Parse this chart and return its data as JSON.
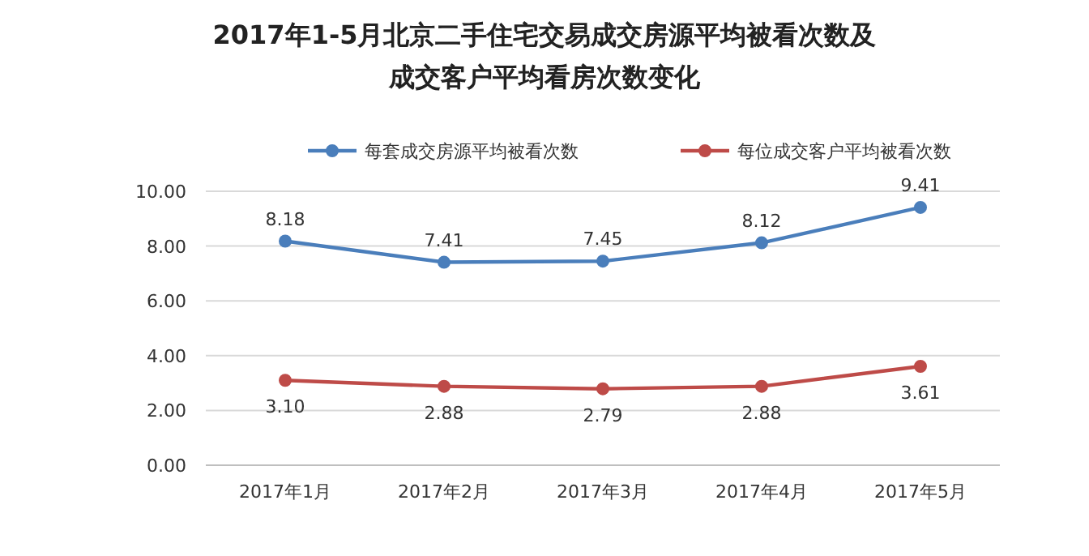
{
  "chart_data": {
    "type": "line",
    "title": "2017年1-5月北京二手住宅交易成交房源平均被看次数及成交客户平均看房次数变化",
    "categories": [
      "2017年1月",
      "2017年2月",
      "2017年3月",
      "2017年4月",
      "2017年5月"
    ],
    "series": [
      {
        "name": "每套成交房源平均被看次数",
        "color": "#4a7ebb",
        "values": [
          8.18,
          7.41,
          7.45,
          8.12,
          9.41
        ],
        "value_labels": [
          "8.18",
          "7.41",
          "7.45",
          "8.12",
          "9.41"
        ]
      },
      {
        "name": "每位成交客户平均被看次数",
        "color": "#be4b48",
        "values": [
          3.1,
          2.88,
          2.79,
          2.88,
          3.61
        ],
        "value_labels": [
          "3.10",
          "2.88",
          "2.79",
          "2.88",
          "3.61"
        ]
      }
    ],
    "ylim": [
      0,
      10
    ],
    "yticks": [
      {
        "value": 0,
        "label": "0.00"
      },
      {
        "value": 2,
        "label": "2.00"
      },
      {
        "value": 4,
        "label": "4.00"
      },
      {
        "value": 6,
        "label": "6.00"
      },
      {
        "value": 8,
        "label": "8.00"
      },
      {
        "value": 10,
        "label": "10.00"
      }
    ],
    "grid": "y",
    "legend": "top",
    "marker": "circle",
    "line_style": "solid"
  }
}
